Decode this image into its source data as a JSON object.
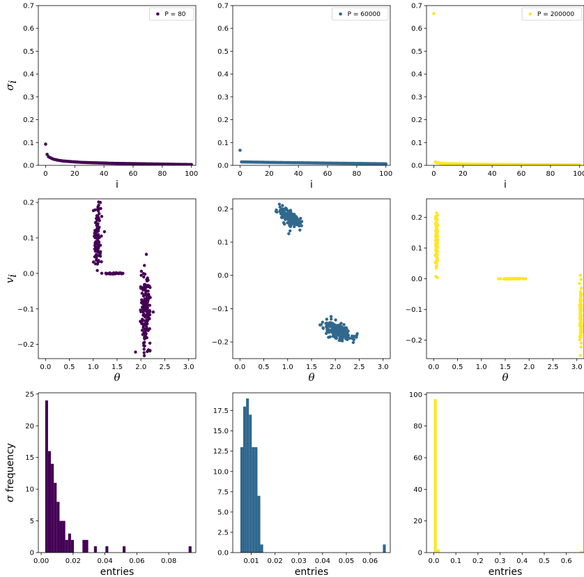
{
  "colors": {
    "p80": "#440154",
    "p60000": "#31688e",
    "p200000": "#fde725"
  },
  "chart_data": [
    {
      "type": "scatter",
      "panel": "top-left",
      "series": [
        {
          "name": "P = 80",
          "color": "#440154",
          "x": [
            0,
            1,
            2,
            3,
            4,
            5,
            6,
            7,
            8,
            9,
            10,
            12,
            14,
            16,
            18,
            20,
            25,
            30,
            35,
            40,
            45,
            50,
            55,
            60,
            65,
            70,
            75,
            80,
            85,
            90,
            95,
            100
          ],
          "y": [
            0.093,
            0.048,
            0.038,
            0.034,
            0.031,
            0.028,
            0.026,
            0.025,
            0.023,
            0.022,
            0.021,
            0.019,
            0.018,
            0.017,
            0.016,
            0.015,
            0.013,
            0.012,
            0.011,
            0.01,
            0.009,
            0.0085,
            0.008,
            0.0075,
            0.007,
            0.0065,
            0.006,
            0.0055,
            0.005,
            0.0045,
            0.004,
            0.0035
          ]
        }
      ],
      "xlabel": "i",
      "ylabel": "σ_i",
      "ylabel_main": "σ",
      "ylabel_sub": "i",
      "xlim": [
        -5,
        103
      ],
      "ylim": [
        0,
        0.7
      ],
      "xticks": [
        "0",
        "20",
        "40",
        "60",
        "80",
        "100"
      ],
      "yticks": [
        "0.0",
        "0.1",
        "0.2",
        "0.3",
        "0.4",
        "0.5",
        "0.6",
        "0.7"
      ],
      "legend": "top-right",
      "legend_label": "P = 80"
    },
    {
      "type": "scatter",
      "panel": "top-center",
      "series": [
        {
          "name": "P = 60000",
          "color": "#31688e",
          "x": [
            0,
            1,
            2,
            3,
            4,
            5,
            6,
            8,
            10,
            15,
            20,
            25,
            30,
            35,
            40,
            45,
            50,
            55,
            60,
            65,
            70,
            75,
            80,
            85,
            90,
            95,
            100
          ],
          "y": [
            0.066,
            0.015,
            0.015,
            0.0148,
            0.0147,
            0.0146,
            0.0145,
            0.0143,
            0.014,
            0.0136,
            0.013,
            0.0126,
            0.0122,
            0.0118,
            0.0114,
            0.011,
            0.0106,
            0.0102,
            0.0098,
            0.0094,
            0.009,
            0.0087,
            0.0083,
            0.008,
            0.0076,
            0.0072,
            0.0068
          ]
        }
      ],
      "xlabel": "i",
      "xlim": [
        -5,
        103
      ],
      "ylim": [
        0,
        0.7
      ],
      "xticks": [
        "0",
        "20",
        "40",
        "60",
        "80",
        "100"
      ],
      "yticks": [
        "0.0",
        "0.1",
        "0.2",
        "0.3",
        "0.4",
        "0.5",
        "0.6",
        "0.7"
      ],
      "legend": "top-right",
      "legend_label": "P = 60000"
    },
    {
      "type": "scatter",
      "panel": "top-right",
      "series": [
        {
          "name": "P = 200000",
          "color": "#fde725",
          "x": [
            0,
            1,
            2,
            3,
            4,
            5,
            6,
            8,
            10,
            15,
            20,
            30,
            40,
            50,
            60,
            70,
            80,
            90,
            100
          ],
          "y": [
            0.665,
            0.015,
            0.012,
            0.011,
            0.01,
            0.009,
            0.0085,
            0.008,
            0.0075,
            0.007,
            0.006,
            0.005,
            0.0045,
            0.004,
            0.0035,
            0.003,
            0.003,
            0.0025,
            0.002
          ]
        }
      ],
      "xlabel": "i",
      "xlim": [
        -5,
        103
      ],
      "ylim": [
        0,
        0.7
      ],
      "xticks": [
        "0",
        "20",
        "40",
        "60",
        "80",
        "100"
      ],
      "yticks": [
        "0.0",
        "0.1",
        "0.2",
        "0.3",
        "0.4",
        "0.5",
        "0.6",
        "0.7"
      ],
      "legend": "top-right",
      "legend_label": "P = 200000"
    },
    {
      "type": "scatter",
      "panel": "middle-left",
      "series": [
        {
          "color": "#440154",
          "clusters": [
            {
              "cx": 1.08,
              "cy": 0.1,
              "sx": 0.04,
              "sy": 0.045,
              "n": 130
            },
            {
              "cx": 1.45,
              "cy": 0.0,
              "sx": 0.12,
              "sy": 0.001,
              "n": 40
            },
            {
              "cx": 2.1,
              "cy": -0.1,
              "sx": 0.05,
              "sy": 0.05,
              "n": 170
            }
          ]
        }
      ],
      "xlabel": "θ",
      "ylabel": "v_i",
      "ylabel_main": "v",
      "ylabel_sub": "i",
      "xlim": [
        -0.15,
        3.15
      ],
      "ylim": [
        -0.24,
        0.21
      ],
      "xticks": [
        "0.0",
        "0.5",
        "1.0",
        "1.5",
        "2.0",
        "2.5",
        "3.0"
      ],
      "yticks": [
        "−0.2",
        "−0.1",
        "0.0",
        "0.1",
        "0.2"
      ]
    },
    {
      "type": "scatter",
      "panel": "middle-center",
      "series": [
        {
          "color": "#31688e",
          "clusters": [
            {
              "cx": 1.05,
              "cy": 0.172,
              "sx": 0.12,
              "sy": 0.012,
              "n": 160,
              "slope": -0.08
            },
            {
              "cx": 2.05,
              "cy": -0.165,
              "sx": 0.15,
              "sy": 0.012,
              "n": 200,
              "slope": -0.08
            }
          ]
        }
      ],
      "xlabel": "θ",
      "xlim": [
        -0.15,
        3.15
      ],
      "ylim": [
        -0.25,
        0.23
      ],
      "xticks": [
        "0.0",
        "0.5",
        "1.0",
        "1.5",
        "2.0",
        "2.5",
        "3.0"
      ],
      "yticks": [
        "−0.2",
        "−0.1",
        "0.0",
        "0.1",
        "0.2"
      ]
    },
    {
      "type": "scatter",
      "panel": "middle-right",
      "series": [
        {
          "color": "#fde725",
          "clusters": [
            {
              "cx": 0.06,
              "cy": 0.125,
              "sx": 0.012,
              "sy": 0.045,
              "n": 120
            },
            {
              "cx": 1.7,
              "cy": 0.0,
              "sx": 0.15,
              "sy": 0.0005,
              "n": 60
            },
            {
              "cx": 3.08,
              "cy": -0.125,
              "sx": 0.012,
              "sy": 0.045,
              "n": 120
            }
          ]
        }
      ],
      "xlabel": "θ",
      "xlim": [
        -0.15,
        3.15
      ],
      "ylim": [
        -0.26,
        0.26
      ],
      "xticks": [
        "0.0",
        "0.5",
        "1.0",
        "1.5",
        "2.0",
        "2.5",
        "3.0"
      ],
      "yticks": [
        "−0.2",
        "−0.1",
        "0.0",
        "0.1",
        "0.2"
      ]
    },
    {
      "type": "bar",
      "panel": "bottom-left",
      "color": "#440154",
      "bins": {
        "start": 0.0025,
        "width": 0.0018
      },
      "values": [
        24,
        16,
        14,
        11,
        8,
        5,
        5,
        2,
        3,
        2,
        0,
        0,
        0,
        2,
        2,
        0,
        0,
        1,
        0,
        0,
        0,
        1,
        0,
        0,
        0,
        0,
        0,
        1,
        0,
        0,
        0,
        0,
        0,
        0,
        0,
        0,
        0,
        0,
        0,
        0,
        0,
        0,
        0,
        0,
        0,
        0,
        0,
        0,
        0,
        0,
        1
      ],
      "xlabel": "entries",
      "ylabel": "σ frequency",
      "ylabel_main": "σ",
      "ylabel_rest": "frequency",
      "xlim": [
        -0.0018,
        0.097
      ],
      "ylim": [
        0,
        25.2
      ],
      "xticks": [
        "0.00",
        "0.02",
        "0.04",
        "0.06",
        "0.08"
      ],
      "yticks": [
        "0",
        "5",
        "10",
        "15",
        "20",
        "25"
      ]
    },
    {
      "type": "bar",
      "panel": "bottom-center",
      "color": "#31688e",
      "bins": {
        "start": 0.0054,
        "width": 0.0012
      },
      "values": [
        13,
        18,
        19,
        17,
        13,
        13,
        7,
        1,
        0,
        0,
        0,
        0,
        0,
        0,
        0,
        0,
        0,
        0,
        0,
        0,
        0,
        0,
        0,
        0,
        0,
        0,
        0,
        0,
        0,
        0,
        0,
        0,
        0,
        0,
        0,
        0,
        0,
        0,
        0,
        0,
        0,
        0,
        0,
        0,
        0,
        0,
        0,
        0,
        0,
        0,
        1
      ],
      "xlabel": "entries",
      "xlim": [
        0.0022,
        0.0685
      ],
      "ylim": [
        0,
        19.7
      ],
      "xticks": [
        "0.01",
        "0.02",
        "0.03",
        "0.04",
        "0.05",
        "0.06"
      ],
      "yticks": [
        "0.0",
        "2.5",
        "5.0",
        "7.5",
        "10.0",
        "12.5",
        "15.0",
        "17.5"
      ]
    },
    {
      "type": "bar",
      "panel": "bottom-right",
      "color": "#fde725",
      "bins": {
        "start": 0.0,
        "width": 0.0135
      },
      "values": [
        97,
        2,
        0,
        0,
        0,
        0,
        0,
        0,
        0,
        0,
        0,
        0,
        0,
        0,
        0,
        0,
        0,
        0,
        0,
        0,
        0,
        0,
        0,
        0,
        0,
        0,
        0,
        0,
        0,
        0,
        0,
        0,
        0,
        0,
        0,
        0,
        0,
        0,
        0,
        0,
        0,
        0,
        0,
        0,
        0,
        0,
        0,
        0,
        0,
        1
      ],
      "xlabel": "entries",
      "xlim": [
        -0.033,
        0.68
      ],
      "ylim": [
        0,
        101
      ],
      "xticks": [
        "0.0",
        "0.1",
        "0.2",
        "0.3",
        "0.4",
        "0.5",
        "0.6"
      ],
      "yticks": [
        "0",
        "20",
        "40",
        "60",
        "80",
        "100"
      ]
    }
  ]
}
